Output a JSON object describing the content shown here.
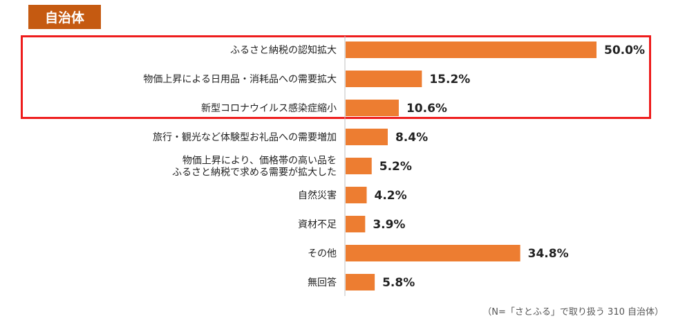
{
  "header": {
    "tag_label": "自治体"
  },
  "colors": {
    "bar": "#ed7d31",
    "tag": "#c55a11",
    "highlight": "#ee1c1c",
    "axis": "#bfbfbf"
  },
  "chart_data": {
    "type": "bar",
    "orientation": "horizontal",
    "categories": [
      [
        "ふるさと納税の認知拡大"
      ],
      [
        "物価上昇による日用品・消耗品への需要拡大"
      ],
      [
        "新型コロナウイルス感染症縮小"
      ],
      [
        "旅行・観光など体験型お礼品への需要増加"
      ],
      [
        "物価上昇により、価格帯の高い品を",
        "ふるさと納税で求める需要が拡大した"
      ],
      [
        "自然災害"
      ],
      [
        "資材不足"
      ],
      [
        "その他"
      ],
      [
        "無回答"
      ]
    ],
    "values": [
      50.0,
      15.2,
      10.6,
      8.4,
      5.2,
      4.2,
      3.9,
      34.8,
      5.8
    ],
    "value_labels": [
      "50.0%",
      "15.2%",
      "10.6%",
      "8.4%",
      "5.2%",
      "4.2%",
      "3.9%",
      "34.8%",
      "5.8%"
    ],
    "xlim": [
      0,
      50
    ],
    "grid": false,
    "highlighted_categories": [
      0,
      1,
      2
    ]
  },
  "footnote": "（N=「さとふる」で取り扱う 310 自治体）"
}
